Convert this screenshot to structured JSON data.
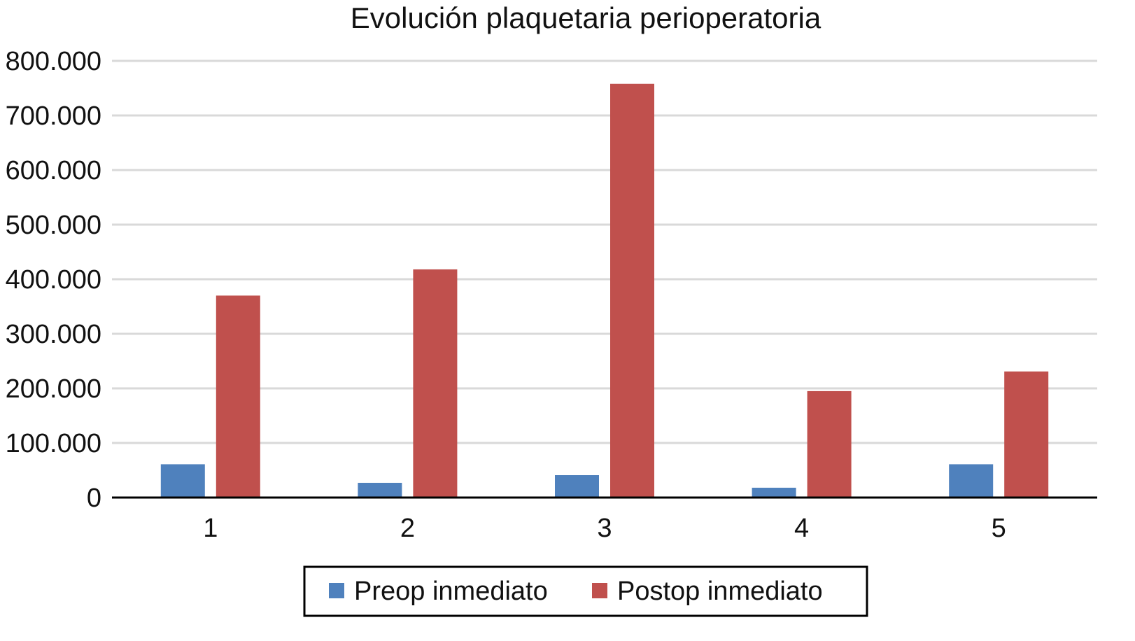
{
  "chart_data": {
    "type": "bar",
    "title": "Evolución plaquetaria perioperatoria",
    "xlabel": "",
    "ylabel": "",
    "categories": [
      "1",
      "2",
      "3",
      "4",
      "5"
    ],
    "series": [
      {
        "name": "Preop inmediato",
        "color": "#4F81BD",
        "values": [
          61000,
          27000,
          41000,
          18000,
          61000
        ]
      },
      {
        "name": "Postop inmediato",
        "color": "#C0504D",
        "values": [
          370000,
          418000,
          758000,
          195000,
          231000
        ]
      }
    ],
    "ylim": [
      0,
      800000
    ],
    "yticks": [
      0,
      100000,
      200000,
      300000,
      400000,
      500000,
      600000,
      700000,
      800000
    ],
    "ytick_labels": [
      "0",
      "100.000",
      "200.000",
      "300.000",
      "400.000",
      "500.000",
      "600.000",
      "700.000",
      "800.000"
    ],
    "grid": true,
    "legend_position": "bottom"
  }
}
